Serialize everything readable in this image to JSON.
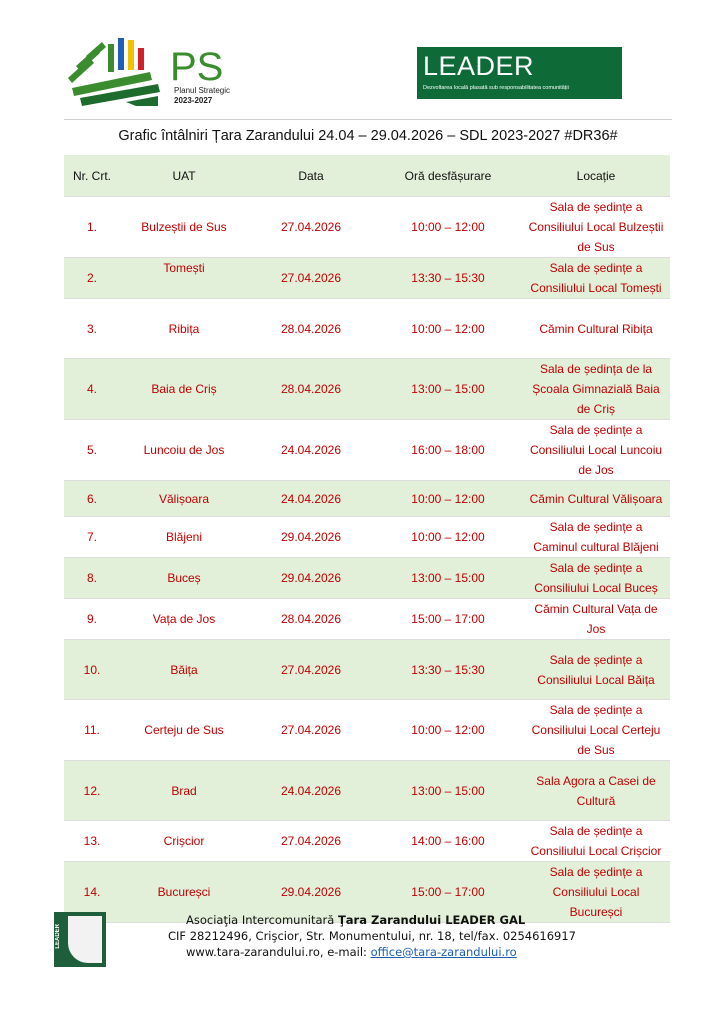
{
  "header": {
    "ps_logo": {
      "mark": "PS",
      "line1": "Planul Strategic",
      "line2": "2023-2027",
      "colors": [
        "#3a8c2e",
        "#1f5fb4",
        "#f2c200",
        "#d0202a"
      ]
    },
    "leader_logo": {
      "title": "LEADER",
      "subtitle": "Dezvoltarea locală plasată sub responsabilitatea comunității",
      "color": "#0e6b38"
    }
  },
  "document_title": "Grafic întâlniri Țara Zarandului 24.04 – 29.04.2026 – SDL 2023-2027 #DR36#",
  "table": {
    "columns": [
      "Nr. Crt.",
      "UAT",
      "Data",
      "Oră desfășurare",
      "Locație"
    ],
    "rows": [
      [
        "1.",
        "Bulzeștii de Sus",
        "27.04.2026",
        "10:00 – 12:00",
        "Sala de ședințe a Consiliului Local Bulzeștii de Sus"
      ],
      [
        "2.",
        "Tomești",
        "27.04.2026",
        "13:30 – 15:30",
        "Sala de ședințe a Consiliului Local Tomești"
      ],
      [
        "3.",
        "Ribița",
        "28.04.2026",
        "10:00 – 12:00",
        "Cămin Cultural Ribița"
      ],
      [
        "4.",
        "Baia de Criș",
        "28.04.2026",
        "13:00 – 15:00",
        "Sala de ședința de la Școala Gimnazială Baia de Criș"
      ],
      [
        "5.",
        "Luncoiu de Jos",
        "24.04.2026",
        "16:00 – 18:00",
        "Sala de ședințe a Consiliului Local Luncoiu de Jos"
      ],
      [
        "6.",
        "Vălișoara",
        "24.04.2026",
        "10:00 – 12:00",
        "Cămin Cultural Vălișoara"
      ],
      [
        "7.",
        "Blăjeni",
        "29.04.2026",
        "10:00 – 12:00",
        "Sala de ședințe a Caminul cultural Blăjeni"
      ],
      [
        "8.",
        "Buceș",
        "29.04.2026",
        "13:00 – 15:00",
        "Sala de ședințe a Consiliului Local Buceș"
      ],
      [
        "9.",
        "Vața de Jos",
        "28.04.2026",
        "15:00 – 17:00",
        "Cămin Cultural Vața de Jos"
      ],
      [
        "10.",
        "Băița",
        "27.04.2026",
        "13:30 – 15:30",
        "Sala de ședințe a Consiliului Local Băița"
      ],
      [
        "11.",
        "Certeju de Sus",
        "27.04.2026",
        "10:00 – 12:00",
        "Sala de ședințe a Consiliului Local Certeju de Sus"
      ],
      [
        "12.",
        "Brad",
        "24.04.2026",
        "13:00 – 15:00",
        "Sala Agora a Casei de Cultură"
      ],
      [
        "13.",
        "Crișcior",
        "27.04.2026",
        "14:00 – 16:00",
        "Sala de ședințe a Consiliului Local Crișcior"
      ],
      [
        "14.",
        "Bucureșci",
        "29.04.2026",
        "15:00 – 17:00",
        "Sala de ședințe a Consiliului Local Bucureșci"
      ]
    ],
    "stripe_color": "#e2efd9",
    "text_color": "#c00000"
  },
  "footer": {
    "logo_text": "LEADER GAL",
    "line1_prefix": "Asociaţia Intercomunitară ",
    "line1_bold": "Ţara Zarandului LEADER GAL",
    "line2": "CIF 28212496, Crişcior, Str. Monumentului, nr. 18, tel/fax. 0254616917",
    "line3_prefix": "www.tara-zarandului.ro, e-mail: ",
    "email": "office@tara-zarandului.ro"
  }
}
